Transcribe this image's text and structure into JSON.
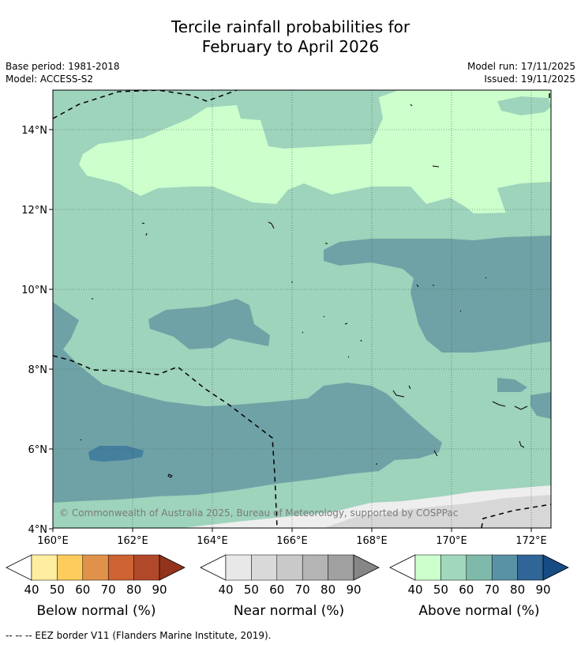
{
  "header": {
    "title_line1": "Tercile rainfall probabilities for",
    "title_line2": "February to April 2026",
    "base_period": "Base period: 1981-2018",
    "model": "Model: ACCESS-S2",
    "model_run": "Model run: 17/11/2025",
    "issued": "Issued: 19/11/2025"
  },
  "map": {
    "x_ticks": [
      "160°E",
      "162°E",
      "164°E",
      "166°E",
      "168°E",
      "170°E",
      "172°E"
    ],
    "y_ticks": [
      "14°N",
      "12°N",
      "10°N",
      "8°N",
      "6°N",
      "4°N"
    ],
    "copyright": "© Commonwealth of Australia 2025, Bureau of Meteorology, supported by COSPPac"
  },
  "legends": [
    {
      "label": "Below normal (%)",
      "ticks": [
        "40",
        "50",
        "60",
        "70",
        "80",
        "90"
      ],
      "colors": [
        "#ffeda0",
        "#fecc5c",
        "#e1924a",
        "#cd6233",
        "#b2482a",
        "#93331c"
      ]
    },
    {
      "label": "Near normal (%)",
      "ticks": [
        "40",
        "50",
        "60",
        "70",
        "80",
        "90"
      ],
      "colors": [
        "#e8e8e8",
        "#d9d9d9",
        "#c9c9c9",
        "#b4b4b4",
        "#a0a0a0",
        "#868686"
      ]
    },
    {
      "label": "Above normal (%)",
      "ticks": [
        "40",
        "50",
        "60",
        "70",
        "80",
        "90"
      ],
      "colors": [
        "#ccffcc",
        "#a1d8bd",
        "#7fb9aa",
        "#5a92a5",
        "#306597",
        "#174b84"
      ]
    }
  ],
  "footnote": "--  --  -- EEZ border V11 (Flanders Marine Institute, 2019).",
  "colors": {
    "above_40": "#ccffcc",
    "above_50": "#9ed3bc",
    "above_60": "#6fa2a6",
    "above_70": "#447f9e",
    "near_40": "#eeeeee",
    "near_50": "#d7d7d7"
  }
}
